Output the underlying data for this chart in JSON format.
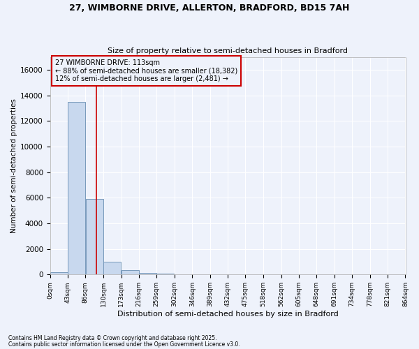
{
  "title_line1": "27, WIMBORNE DRIVE, ALLERTON, BRADFORD, BD15 7AH",
  "title_line2": "Size of property relative to semi-detached houses in Bradford",
  "xlabel": "Distribution of semi-detached houses by size in Bradford",
  "ylabel": "Number of semi-detached properties",
  "footer_line1": "Contains HM Land Registry data © Crown copyright and database right 2025.",
  "footer_line2": "Contains public sector information licensed under the Open Government Licence v3.0.",
  "annotation_line1": "27 WIMBORNE DRIVE: 113sqm",
  "annotation_line2": "← 88% of semi-detached houses are smaller (18,382)",
  "annotation_line3": "12% of semi-detached houses are larger (2,481) →",
  "property_size": 113,
  "bin_edges": [
    0,
    43,
    86,
    130,
    173,
    216,
    259,
    302,
    346,
    389,
    432,
    475,
    518,
    562,
    605,
    648,
    691,
    734,
    778,
    821,
    864
  ],
  "bin_counts": [
    200,
    13500,
    5900,
    1000,
    350,
    150,
    50,
    8,
    3,
    2,
    1,
    1,
    0,
    0,
    0,
    0,
    0,
    0,
    0,
    0
  ],
  "bar_color": "#c8d8ee",
  "bar_edge_color": "#7799bb",
  "vline_color": "#cc0000",
  "vline_x": 113,
  "annotation_box_color": "#cc0000",
  "background_color": "#eef2fb",
  "grid_color": "#ffffff",
  "ylim": [
    0,
    17000
  ],
  "yticks": [
    0,
    2000,
    4000,
    6000,
    8000,
    10000,
    12000,
    14000,
    16000
  ]
}
